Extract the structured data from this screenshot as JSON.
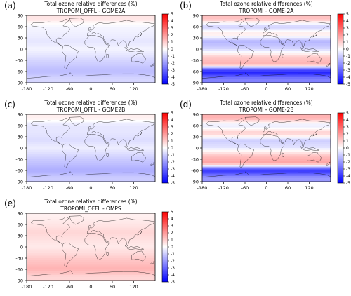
{
  "chart_data": [
    {
      "type": "heatmap",
      "panel_label": "(a)",
      "title": "Total ozone relative differences (%)",
      "subtitle": "TROPOMI_OFFL - GOME2A",
      "x_ticks": [
        "-180",
        "-120",
        "-60",
        "0",
        "60",
        "120"
      ],
      "y_ticks": [
        "90",
        "60",
        "30",
        "0",
        "-30",
        "-60",
        "-90"
      ],
      "colorbar_ticks": [
        "5",
        "4",
        "3",
        "2",
        "1",
        "0",
        "-1",
        "-2",
        "-3",
        "-4",
        "-5"
      ],
      "xlim": [
        -180,
        180
      ],
      "ylim": [
        -90,
        90
      ],
      "clim": [
        -5,
        5
      ],
      "colormap": "bwr",
      "zonal_mean_percent": [
        {
          "lat": 80,
          "value": 0.5
        },
        {
          "lat": 60,
          "value": -0.2
        },
        {
          "lat": 40,
          "value": -0.3
        },
        {
          "lat": 20,
          "value": -0.5
        },
        {
          "lat": 0,
          "value": -0.2
        },
        {
          "lat": -20,
          "value": -0.6
        },
        {
          "lat": -40,
          "value": -1.0
        },
        {
          "lat": -60,
          "value": -1.3
        },
        {
          "lat": -80,
          "value": -0.8
        }
      ]
    },
    {
      "type": "heatmap",
      "panel_label": "(b)",
      "title": "Total ozone relative differences (%)",
      "subtitle": "TROPOMI - GOME-2A",
      "x_ticks": [
        "-180",
        "-120",
        "-60",
        "0",
        "60",
        "120"
      ],
      "y_ticks": [
        "90",
        "60",
        "30",
        "0",
        "-30",
        "-60",
        "-90"
      ],
      "colorbar_ticks": [
        "5",
        "4",
        "3",
        "2",
        "1",
        "0",
        "-1",
        "-2",
        "-3",
        "-4",
        "-5"
      ],
      "xlim": [
        -180,
        180
      ],
      "ylim": [
        -90,
        90
      ],
      "clim": [
        -5,
        5
      ],
      "colormap": "bwr",
      "zonal_mean_percent": [
        {
          "lat": 80,
          "value": 1.2
        },
        {
          "lat": 60,
          "value": -1.0
        },
        {
          "lat": 40,
          "value": 0.5
        },
        {
          "lat": 20,
          "value": -1.5
        },
        {
          "lat": 0,
          "value": -0.8
        },
        {
          "lat": -20,
          "value": 1.0
        },
        {
          "lat": -40,
          "value": 1.5
        },
        {
          "lat": -60,
          "value": -4.5
        },
        {
          "lat": -80,
          "value": -2.5
        }
      ]
    },
    {
      "type": "heatmap",
      "panel_label": "(c)",
      "title": "Total ozone relative differences (%)",
      "subtitle": "TROPOMI_OFFL - GOME2B",
      "x_ticks": [
        "-180",
        "-120",
        "-60",
        "0",
        "60",
        "120"
      ],
      "y_ticks": [
        "90",
        "60",
        "30",
        "0",
        "-30",
        "-60",
        "-90"
      ],
      "colorbar_ticks": [
        "5",
        "4",
        "3",
        "2",
        "1",
        "0",
        "-1",
        "-2",
        "-3",
        "-4",
        "-5"
      ],
      "xlim": [
        -180,
        180
      ],
      "ylim": [
        -90,
        90
      ],
      "clim": [
        -5,
        5
      ],
      "colormap": "bwr",
      "zonal_mean_percent": [
        {
          "lat": 80,
          "value": 0.3
        },
        {
          "lat": 60,
          "value": -0.5
        },
        {
          "lat": 40,
          "value": -0.5
        },
        {
          "lat": 20,
          "value": -0.7
        },
        {
          "lat": 0,
          "value": -0.3
        },
        {
          "lat": -20,
          "value": -0.8
        },
        {
          "lat": -40,
          "value": -1.2
        },
        {
          "lat": -60,
          "value": -1.6
        },
        {
          "lat": -80,
          "value": -1.0
        }
      ]
    },
    {
      "type": "heatmap",
      "panel_label": "(d)",
      "title": "Total ozone relative differences (%)",
      "subtitle": "TROPOMI - GOME-2B",
      "x_ticks": [
        "-180",
        "-120",
        "-60",
        "0",
        "60",
        "120"
      ],
      "y_ticks": [
        "90",
        "60",
        "30",
        "0",
        "-30",
        "-60",
        "-90"
      ],
      "colorbar_ticks": [
        "5",
        "4",
        "3",
        "2",
        "1",
        "0",
        "-1",
        "-2",
        "-3",
        "-4",
        "-5"
      ],
      "xlim": [
        -180,
        180
      ],
      "ylim": [
        -90,
        90
      ],
      "clim": [
        -5,
        5
      ],
      "colormap": "bwr",
      "zonal_mean_percent": [
        {
          "lat": 80,
          "value": 1.5
        },
        {
          "lat": 60,
          "value": -0.5
        },
        {
          "lat": 40,
          "value": 1.0
        },
        {
          "lat": 20,
          "value": -1.0
        },
        {
          "lat": 0,
          "value": -0.5
        },
        {
          "lat": -20,
          "value": 1.2
        },
        {
          "lat": -40,
          "value": 1.8
        },
        {
          "lat": -60,
          "value": -4.0
        },
        {
          "lat": -80,
          "value": -2.0
        }
      ]
    },
    {
      "type": "heatmap",
      "panel_label": "(e)",
      "title": "Total ozone relative differences (%)",
      "subtitle": "TROPOMI_OFFL - OMPS",
      "x_ticks": [
        "-180",
        "-120",
        "-60",
        "0",
        "60",
        "120"
      ],
      "y_ticks": [
        "90",
        "60",
        "30",
        "0",
        "-30",
        "-60",
        "-90"
      ],
      "colorbar_ticks": [
        "5",
        "4",
        "3",
        "2",
        "1",
        "0",
        "-1",
        "-2",
        "-3",
        "-4",
        "-5"
      ],
      "xlim": [
        -180,
        180
      ],
      "ylim": [
        -90,
        90
      ],
      "clim": [
        -5,
        5
      ],
      "colormap": "bwr",
      "zonal_mean_percent": [
        {
          "lat": 80,
          "value": 0.3
        },
        {
          "lat": 60,
          "value": 0.5
        },
        {
          "lat": 40,
          "value": 0.8
        },
        {
          "lat": 20,
          "value": 0.6
        },
        {
          "lat": 0,
          "value": 0.4
        },
        {
          "lat": -20,
          "value": 0.8
        },
        {
          "lat": -40,
          "value": 1.2
        },
        {
          "lat": -60,
          "value": 1.5
        },
        {
          "lat": -80,
          "value": 0.8
        }
      ]
    }
  ]
}
